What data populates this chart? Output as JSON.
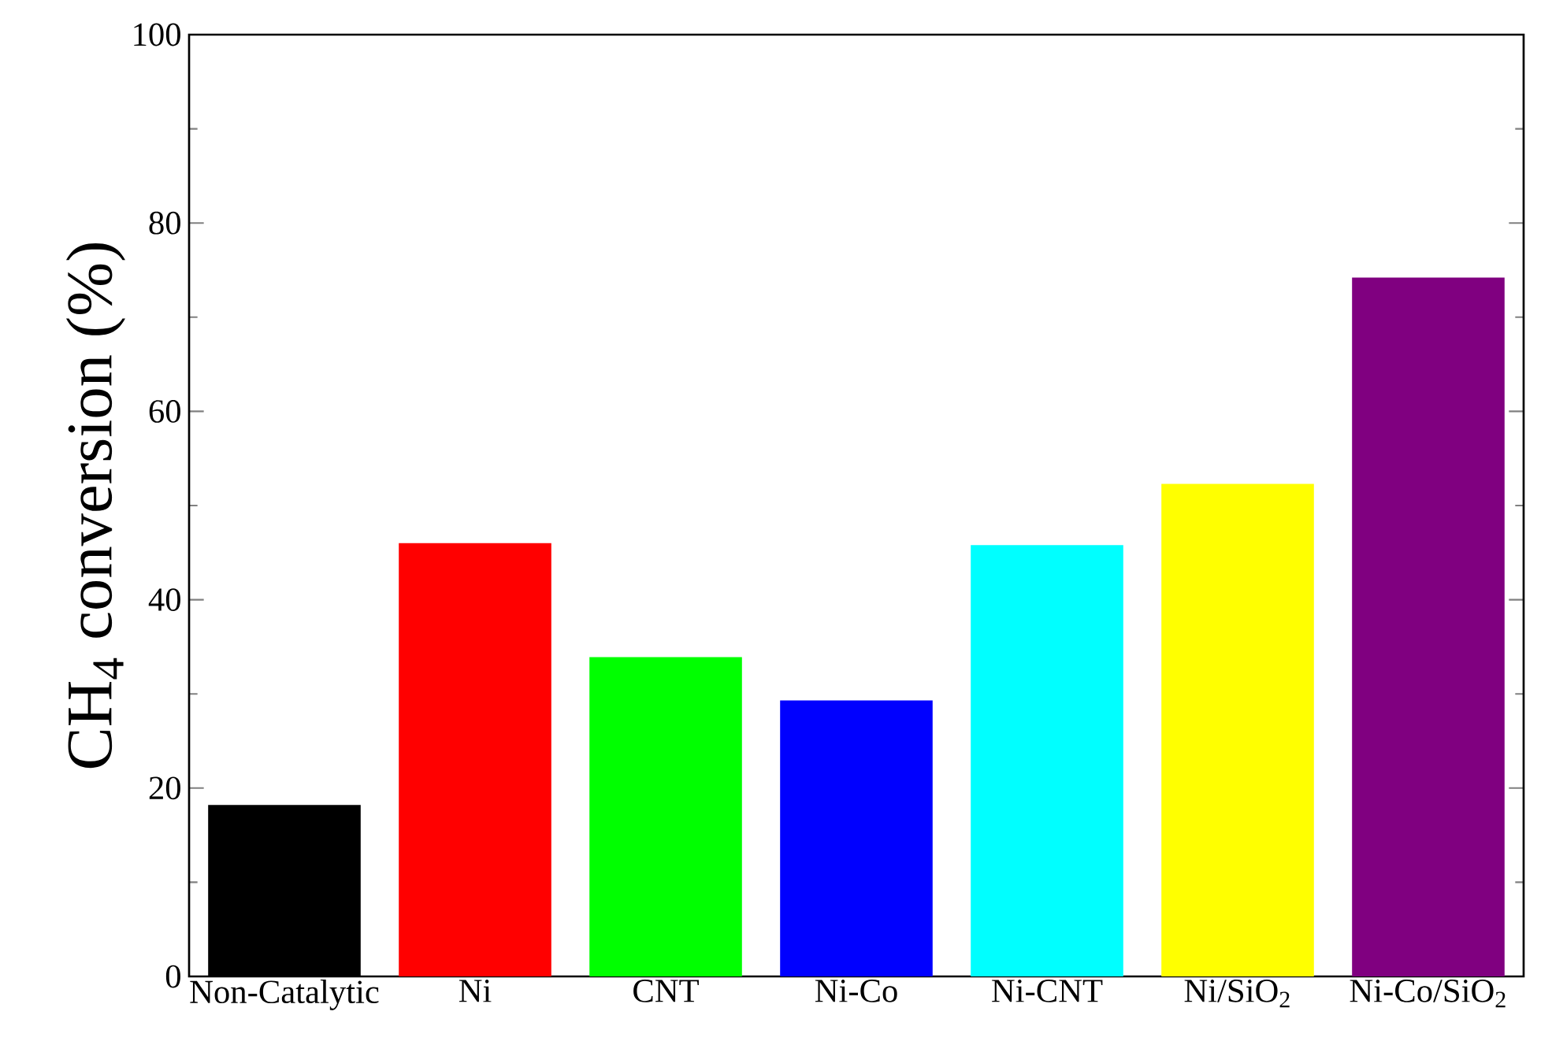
{
  "chart_data": {
    "type": "bar",
    "ylabel": "CH$_{4}$ conversion (%)",
    "categories": [
      "Non-Catalytic",
      "Ni",
      "CNT",
      "Ni-Co",
      "Ni-CNT",
      "Ni/SiO$_{2}$",
      "Ni-Co/SiO$_{2}$"
    ],
    "values": [
      18.2,
      46.0,
      33.9,
      29.3,
      45.8,
      52.3,
      74.2
    ],
    "colors": [
      "#000000",
      "#ff0000",
      "#00ff00",
      "#0000ff",
      "#00ffff",
      "#ffff00",
      "#800080"
    ],
    "ylim": [
      0,
      100
    ],
    "yticks": [
      0,
      20,
      40,
      60,
      80,
      100
    ]
  }
}
